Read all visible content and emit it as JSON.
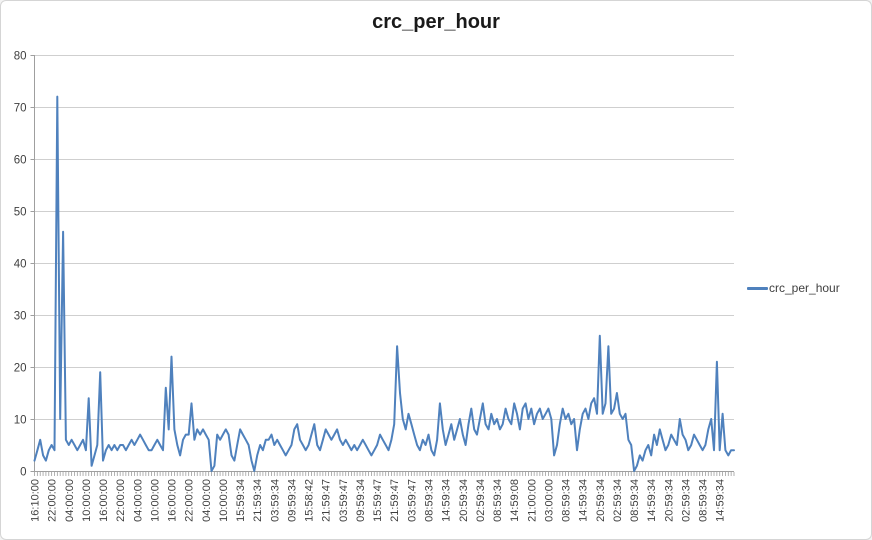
{
  "window": {
    "background": "#ffffff",
    "border_color": "#d5d5d5"
  },
  "chart_data": {
    "type": "line",
    "title": "crc_per_hour",
    "xlabel": "",
    "ylabel": "",
    "ylim": [
      0,
      80
    ],
    "y_ticks": [
      0,
      10,
      20,
      30,
      40,
      50,
      60,
      70,
      80
    ],
    "grid": true,
    "legend_position": "right",
    "legend_label": "crc_per_hour",
    "x_label_rotation": -90,
    "x_ticks_every_n_points": 6,
    "x_tick_labels": [
      "16:10:00",
      "22:00:00",
      "04:00:00",
      "10:00:00",
      "16:00:00",
      "22:00:00",
      "04:00:00",
      "10:00:00",
      "16:00:00",
      "22:00:00",
      "04:00:00",
      "10:00:00",
      "15:59:34",
      "21:59:34",
      "03:59:34",
      "09:59:34",
      "15:58:42",
      "21:59:47",
      "03:59:47",
      "09:59:34",
      "15:59:47",
      "21:59:47",
      "03:59:47",
      "08:59:34",
      "14:59:34",
      "20:59:34",
      "02:59:34",
      "08:59:34",
      "14:59:08",
      "21:00:00",
      "03:00:00",
      "08:59:34",
      "14:59:34",
      "20:59:34",
      "02:59:34",
      "08:59:34",
      "14:59:34",
      "20:59:34",
      "02:59:34",
      "08:59:34",
      "14:59:34"
    ],
    "series": [
      {
        "name": "crc_per_hour",
        "color": "#4f81bd",
        "values": [
          2,
          4,
          6,
          3,
          2,
          4,
          5,
          4,
          72,
          10,
          46,
          6,
          5,
          6,
          5,
          4,
          5,
          6,
          4,
          14,
          1,
          3,
          5,
          19,
          2,
          4,
          5,
          4,
          5,
          4,
          5,
          5,
          4,
          5,
          6,
          5,
          6,
          7,
          6,
          5,
          4,
          4,
          5,
          6,
          5,
          4,
          16,
          8,
          22,
          8,
          5,
          3,
          6,
          7,
          7,
          13,
          6,
          8,
          7,
          8,
          7,
          6,
          0,
          1,
          7,
          6,
          7,
          8,
          7,
          3,
          2,
          5,
          8,
          7,
          6,
          5,
          2,
          0,
          3,
          5,
          4,
          6,
          6,
          7,
          5,
          6,
          5,
          4,
          3,
          4,
          5,
          8,
          9,
          6,
          5,
          4,
          5,
          7,
          9,
          5,
          4,
          6,
          8,
          7,
          6,
          7,
          8,
          6,
          5,
          6,
          5,
          4,
          5,
          4,
          5,
          6,
          5,
          4,
          3,
          4,
          5,
          7,
          6,
          5,
          4,
          6,
          9,
          24,
          15,
          10,
          8,
          11,
          9,
          7,
          5,
          4,
          6,
          5,
          7,
          4,
          3,
          6,
          13,
          8,
          5,
          7,
          9,
          6,
          8,
          10,
          7,
          5,
          9,
          12,
          8,
          7,
          10,
          13,
          9,
          8,
          11,
          9,
          10,
          8,
          9,
          12,
          10,
          9,
          13,
          11,
          8,
          12,
          13,
          10,
          12,
          9,
          11,
          12,
          10,
          11,
          12,
          10,
          3,
          5,
          9,
          12,
          10,
          11,
          9,
          10,
          4,
          8,
          11,
          12,
          10,
          13,
          14,
          11,
          26,
          11,
          13,
          24,
          11,
          12,
          15,
          11,
          10,
          11,
          6,
          5,
          0,
          1,
          3,
          2,
          4,
          5,
          3,
          7,
          5,
          8,
          6,
          4,
          5,
          7,
          6,
          5,
          10,
          7,
          6,
          4,
          5,
          7,
          6,
          5,
          4,
          5,
          8,
          10,
          4,
          21,
          4,
          11,
          4,
          3,
          4,
          4
        ]
      }
    ],
    "colors": {
      "grid": "#cfcfcf",
      "axis": "#9f9f9f",
      "text": "#3f3f3f",
      "title": "#1a1a1a"
    }
  }
}
